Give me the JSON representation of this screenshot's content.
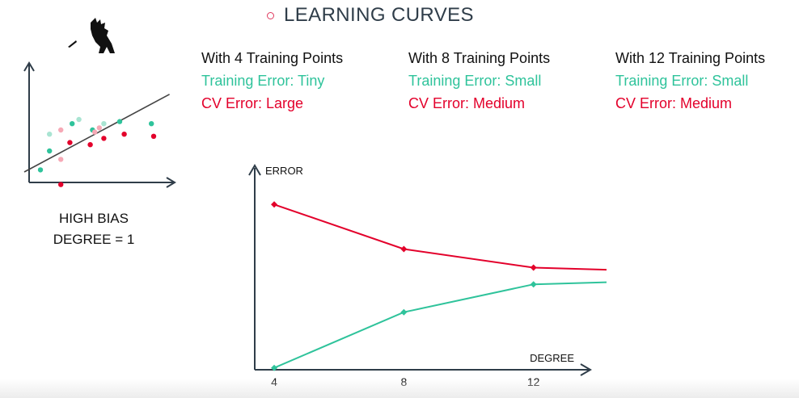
{
  "title": "LEARNING CURVES",
  "columns": [
    {
      "heading": "With 4 Training Points",
      "training_error": "Training Error: Tiny",
      "cv_error": "CV Error: Large"
    },
    {
      "heading": "With 8 Training Points",
      "training_error": "Training Error: Small",
      "cv_error": "CV Error: Medium"
    },
    {
      "heading": "With 12 Training Points",
      "training_error": "Training Error: Small",
      "cv_error": "CV Error: Medium"
    }
  ],
  "bias_label": {
    "line1": "HIGH BIAS",
    "line2": "DEGREE = 1"
  },
  "colors": {
    "training": "#2fc39b",
    "cv": "#e3002b",
    "axis": "#2f3d49",
    "title_dot": "#e03a5f",
    "train_point_light": "#a9e4d2",
    "cv_point_light": "#f6a9b6",
    "fit_line": "#444444"
  },
  "icons": {
    "mascot": "godzilla-mascot-icon"
  },
  "chart_data": [
    {
      "type": "scatter",
      "title": "",
      "series": [
        {
          "color": "#2fc39b",
          "points": [
            [
              0.5,
              0.6
            ],
            [
              0.9,
              1.5
            ],
            [
              1.9,
              2.8
            ],
            [
              2.8,
              2.5
            ],
            [
              4.0,
              2.9
            ],
            [
              5.4,
              2.8
            ]
          ]
        },
        {
          "color": "#a9e4d2",
          "points": [
            [
              0.9,
              2.3
            ],
            [
              2.2,
              3.0
            ],
            [
              3.3,
              2.8
            ]
          ]
        },
        {
          "color": "#e3002b",
          "points": [
            [
              1.4,
              -0.1
            ],
            [
              1.8,
              1.9
            ],
            [
              2.7,
              1.8
            ],
            [
              3.3,
              2.1
            ],
            [
              4.2,
              2.3
            ],
            [
              5.5,
              2.2
            ]
          ]
        },
        {
          "color": "#f6a9b6",
          "points": [
            [
              1.4,
              1.1
            ],
            [
              1.4,
              2.5
            ],
            [
              2.9,
              2.4
            ],
            [
              3.1,
              2.6
            ]
          ]
        }
      ],
      "fit_line": [
        [
          0.0,
          0.5
        ],
        [
          6.2,
          4.2
        ]
      ],
      "axes_arrows": true
    },
    {
      "type": "line",
      "xlabel": "DEGREE",
      "ylabel": "ERROR",
      "x_ticks": [
        "4",
        "8",
        "12"
      ],
      "xlim": [
        3.0,
        16.0
      ],
      "ylim": [
        0,
        10
      ],
      "series": [
        {
          "color": "#e3002b",
          "x": [
            4,
            8,
            12,
            16
          ],
          "y": [
            8.9,
            6.5,
            5.5,
            5.3
          ],
          "markers": [
            true,
            true,
            true,
            false
          ]
        },
        {
          "color": "#2fc39b",
          "x": [
            4,
            8,
            12,
            16
          ],
          "y": [
            0.1,
            3.1,
            4.6,
            4.8
          ],
          "markers": [
            true,
            true,
            true,
            false
          ]
        }
      ]
    }
  ]
}
